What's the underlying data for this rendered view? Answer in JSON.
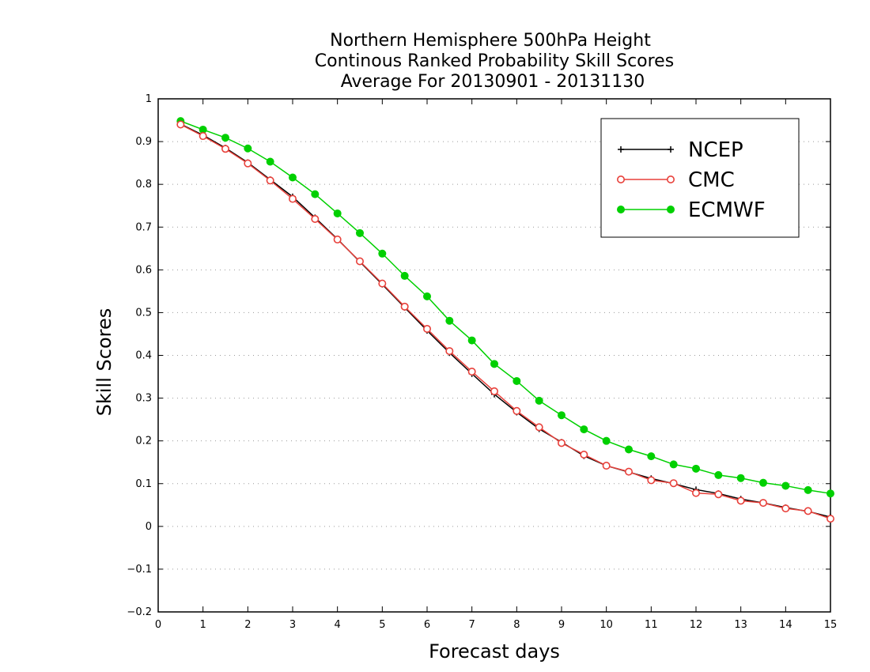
{
  "chart_data": {
    "type": "line",
    "title": [
      "Northern Hemisphere 500hPa Height",
      "Continous Ranked Probability Skill Scores",
      "Average For 20130901 - 20131130"
    ],
    "xlabel": "Forecast days",
    "ylabel": "Skill Scores",
    "xlim": [
      0,
      15
    ],
    "ylim": [
      -0.2,
      1
    ],
    "xticks": [
      0,
      1,
      2,
      3,
      4,
      5,
      6,
      7,
      8,
      9,
      10,
      11,
      12,
      13,
      14,
      15
    ],
    "yticks": [
      -0.2,
      -0.1,
      0,
      0.1,
      0.2,
      0.3,
      0.4,
      0.5,
      0.6,
      0.7,
      0.8,
      0.9,
      1
    ],
    "ytick_labels": [
      "−0.2",
      "−0.1",
      "0",
      "0.1",
      "0.2",
      "0.3",
      "0.4",
      "0.5",
      "0.6",
      "0.7",
      "0.8",
      "0.9",
      "1"
    ],
    "grid": "horizontal-dotted",
    "legend_position": "top-right",
    "x": [
      0.5,
      1,
      1.5,
      2,
      2.5,
      3,
      3.5,
      4,
      4.5,
      5,
      5.5,
      6,
      6.5,
      7,
      7.5,
      8,
      8.5,
      9,
      9.5,
      10,
      10.5,
      11,
      11.5,
      12,
      12.5,
      13,
      13.5,
      14,
      14.5,
      15
    ],
    "series": [
      {
        "name": "NCEP",
        "color": "#000000",
        "marker": "plus",
        "values": [
          0.941,
          0.915,
          0.885,
          0.851,
          0.811,
          0.771,
          0.722,
          0.672,
          0.619,
          0.566,
          0.512,
          0.458,
          0.406,
          0.357,
          0.309,
          0.267,
          0.228,
          0.197,
          0.165,
          0.142,
          0.127,
          0.112,
          0.1,
          0.086,
          0.077,
          0.064,
          0.055,
          0.044,
          0.035,
          0.022
        ]
      },
      {
        "name": "CMC",
        "color": "#e8403a",
        "marker": "open-circle",
        "values": [
          0.94,
          0.913,
          0.883,
          0.849,
          0.809,
          0.766,
          0.719,
          0.671,
          0.62,
          0.568,
          0.514,
          0.462,
          0.41,
          0.362,
          0.316,
          0.27,
          0.232,
          0.195,
          0.168,
          0.142,
          0.128,
          0.108,
          0.101,
          0.078,
          0.075,
          0.06,
          0.055,
          0.042,
          0.036,
          0.018
        ]
      },
      {
        "name": "ECMWF",
        "color": "#00d000",
        "marker": "filled-circle",
        "values": [
          0.948,
          0.928,
          0.909,
          0.884,
          0.853,
          0.816,
          0.777,
          0.732,
          0.686,
          0.638,
          0.586,
          0.538,
          0.481,
          0.435,
          0.38,
          0.34,
          0.294,
          0.26,
          0.227,
          0.2,
          0.18,
          0.164,
          0.145,
          0.135,
          0.12,
          0.113,
          0.102,
          0.095,
          0.085,
          0.077
        ]
      }
    ]
  }
}
